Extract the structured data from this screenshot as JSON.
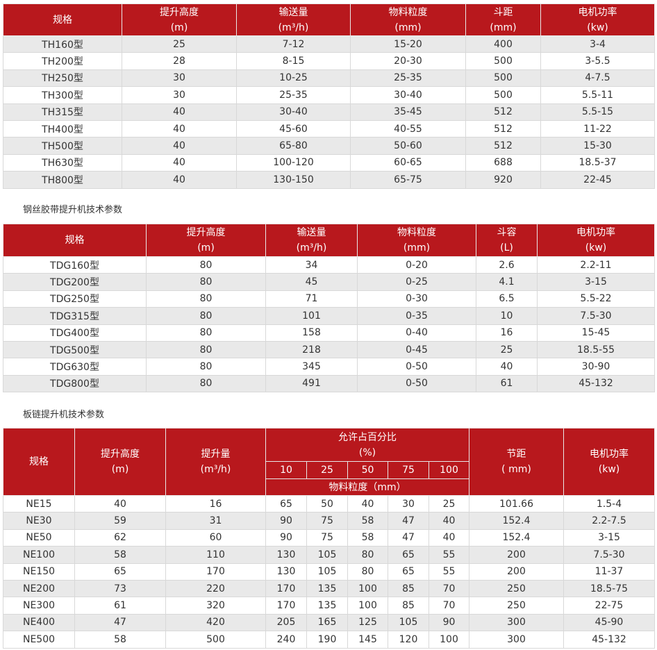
{
  "table1": {
    "headers": [
      [
        "规格",
        ""
      ],
      [
        "提升高度",
        "(m)"
      ],
      [
        "输送量",
        "(m³/h)"
      ],
      [
        "物料粒度",
        "(mm)"
      ],
      [
        "斗距",
        "(mm)"
      ],
      [
        "电机功率",
        "(kw)"
      ]
    ],
    "rows": [
      [
        "TH160型",
        "25",
        "7-12",
        "15-20",
        "400",
        "3-4"
      ],
      [
        "TH200型",
        "28",
        "8-15",
        "20-30",
        "500",
        "3-5.5"
      ],
      [
        "TH250型",
        "30",
        "10-25",
        "25-35",
        "500",
        "4-7.5"
      ],
      [
        "TH300型",
        "30",
        "25-35",
        "30-40",
        "500",
        "5.5-11"
      ],
      [
        "TH315型",
        "40",
        "30-40",
        "35-45",
        "512",
        "5.5-15"
      ],
      [
        "TH400型",
        "40",
        "45-60",
        "40-55",
        "512",
        "11-22"
      ],
      [
        "TH500型",
        "40",
        "65-80",
        "50-60",
        "512",
        "15-30"
      ],
      [
        "TH630型",
        "40",
        "100-120",
        "60-65",
        "688",
        "18.5-37"
      ],
      [
        "TH800型",
        "40",
        "130-150",
        "65-75",
        "920",
        "22-45"
      ]
    ]
  },
  "caption2": "钢丝胶带提升机技术参数",
  "table2": {
    "headers": [
      [
        "规格",
        ""
      ],
      [
        "提升高度",
        "(m)"
      ],
      [
        "输送量",
        "(m³/h)"
      ],
      [
        "物料粒度",
        "(mm)"
      ],
      [
        "斗容",
        "(L)"
      ],
      [
        "电机功率",
        "(kw)"
      ]
    ],
    "rows": [
      [
        "TDG160型",
        "80",
        "34",
        "0-20",
        "2.6",
        "2.2-11"
      ],
      [
        "TDG200型",
        "80",
        "45",
        "0-25",
        "4.1",
        "3-15"
      ],
      [
        "TDG250型",
        "80",
        "71",
        "0-30",
        "6.5",
        "5.5-22"
      ],
      [
        "TDG315型",
        "80",
        "101",
        "0-35",
        "10",
        "7.5-30"
      ],
      [
        "TDG400型",
        "80",
        "158",
        "0-40",
        "16",
        "15-45"
      ],
      [
        "TDG500型",
        "80",
        "218",
        "0-45",
        "25",
        "18.5-55"
      ],
      [
        "TDG630型",
        "80",
        "345",
        "0-50",
        "40",
        "30-90"
      ],
      [
        "TDG800型",
        "80",
        "491",
        "0-50",
        "61",
        "45-132"
      ]
    ]
  },
  "caption3": "板链提升机技术参数",
  "table3": {
    "h_spec": "规格",
    "h_height": [
      "提升高度",
      "(m)"
    ],
    "h_volume": [
      "提升量",
      "(m³/h)"
    ],
    "h_percent": [
      "允许占百分比",
      "(%)"
    ],
    "h_percent_values": [
      "10",
      "25",
      "50",
      "75",
      "100"
    ],
    "h_granularity": "物料粒度（mm）",
    "h_pitch": [
      "节距",
      "( mm)"
    ],
    "h_power": [
      "电机功率",
      "(kw)"
    ],
    "rows": [
      [
        "NE15",
        "40",
        "16",
        "65",
        "50",
        "40",
        "30",
        "25",
        "101.66",
        "1.5-4"
      ],
      [
        "NE30",
        "59",
        "31",
        "90",
        "75",
        "58",
        "47",
        "40",
        "152.4",
        "2.2-7.5"
      ],
      [
        "NE50",
        "62",
        "60",
        "90",
        "75",
        "58",
        "47",
        "40",
        "152.4",
        "3-15"
      ],
      [
        "NE100",
        "58",
        "110",
        "130",
        "105",
        "80",
        "65",
        "55",
        "200",
        "7.5-30"
      ],
      [
        "NE150",
        "65",
        "170",
        "130",
        "105",
        "80",
        "65",
        "55",
        "200",
        "11-37"
      ],
      [
        "NE200",
        "73",
        "220",
        "170",
        "135",
        "100",
        "85",
        "70",
        "250",
        "18.5-75"
      ],
      [
        "NE300",
        "61",
        "320",
        "170",
        "135",
        "100",
        "85",
        "70",
        "250",
        "22-75"
      ],
      [
        "NE400",
        "47",
        "420",
        "205",
        "165",
        "125",
        "105",
        "90",
        "300",
        "45-90"
      ],
      [
        "NE500",
        "58",
        "500",
        "240",
        "190",
        "145",
        "120",
        "100",
        "300",
        "45-132"
      ]
    ]
  }
}
